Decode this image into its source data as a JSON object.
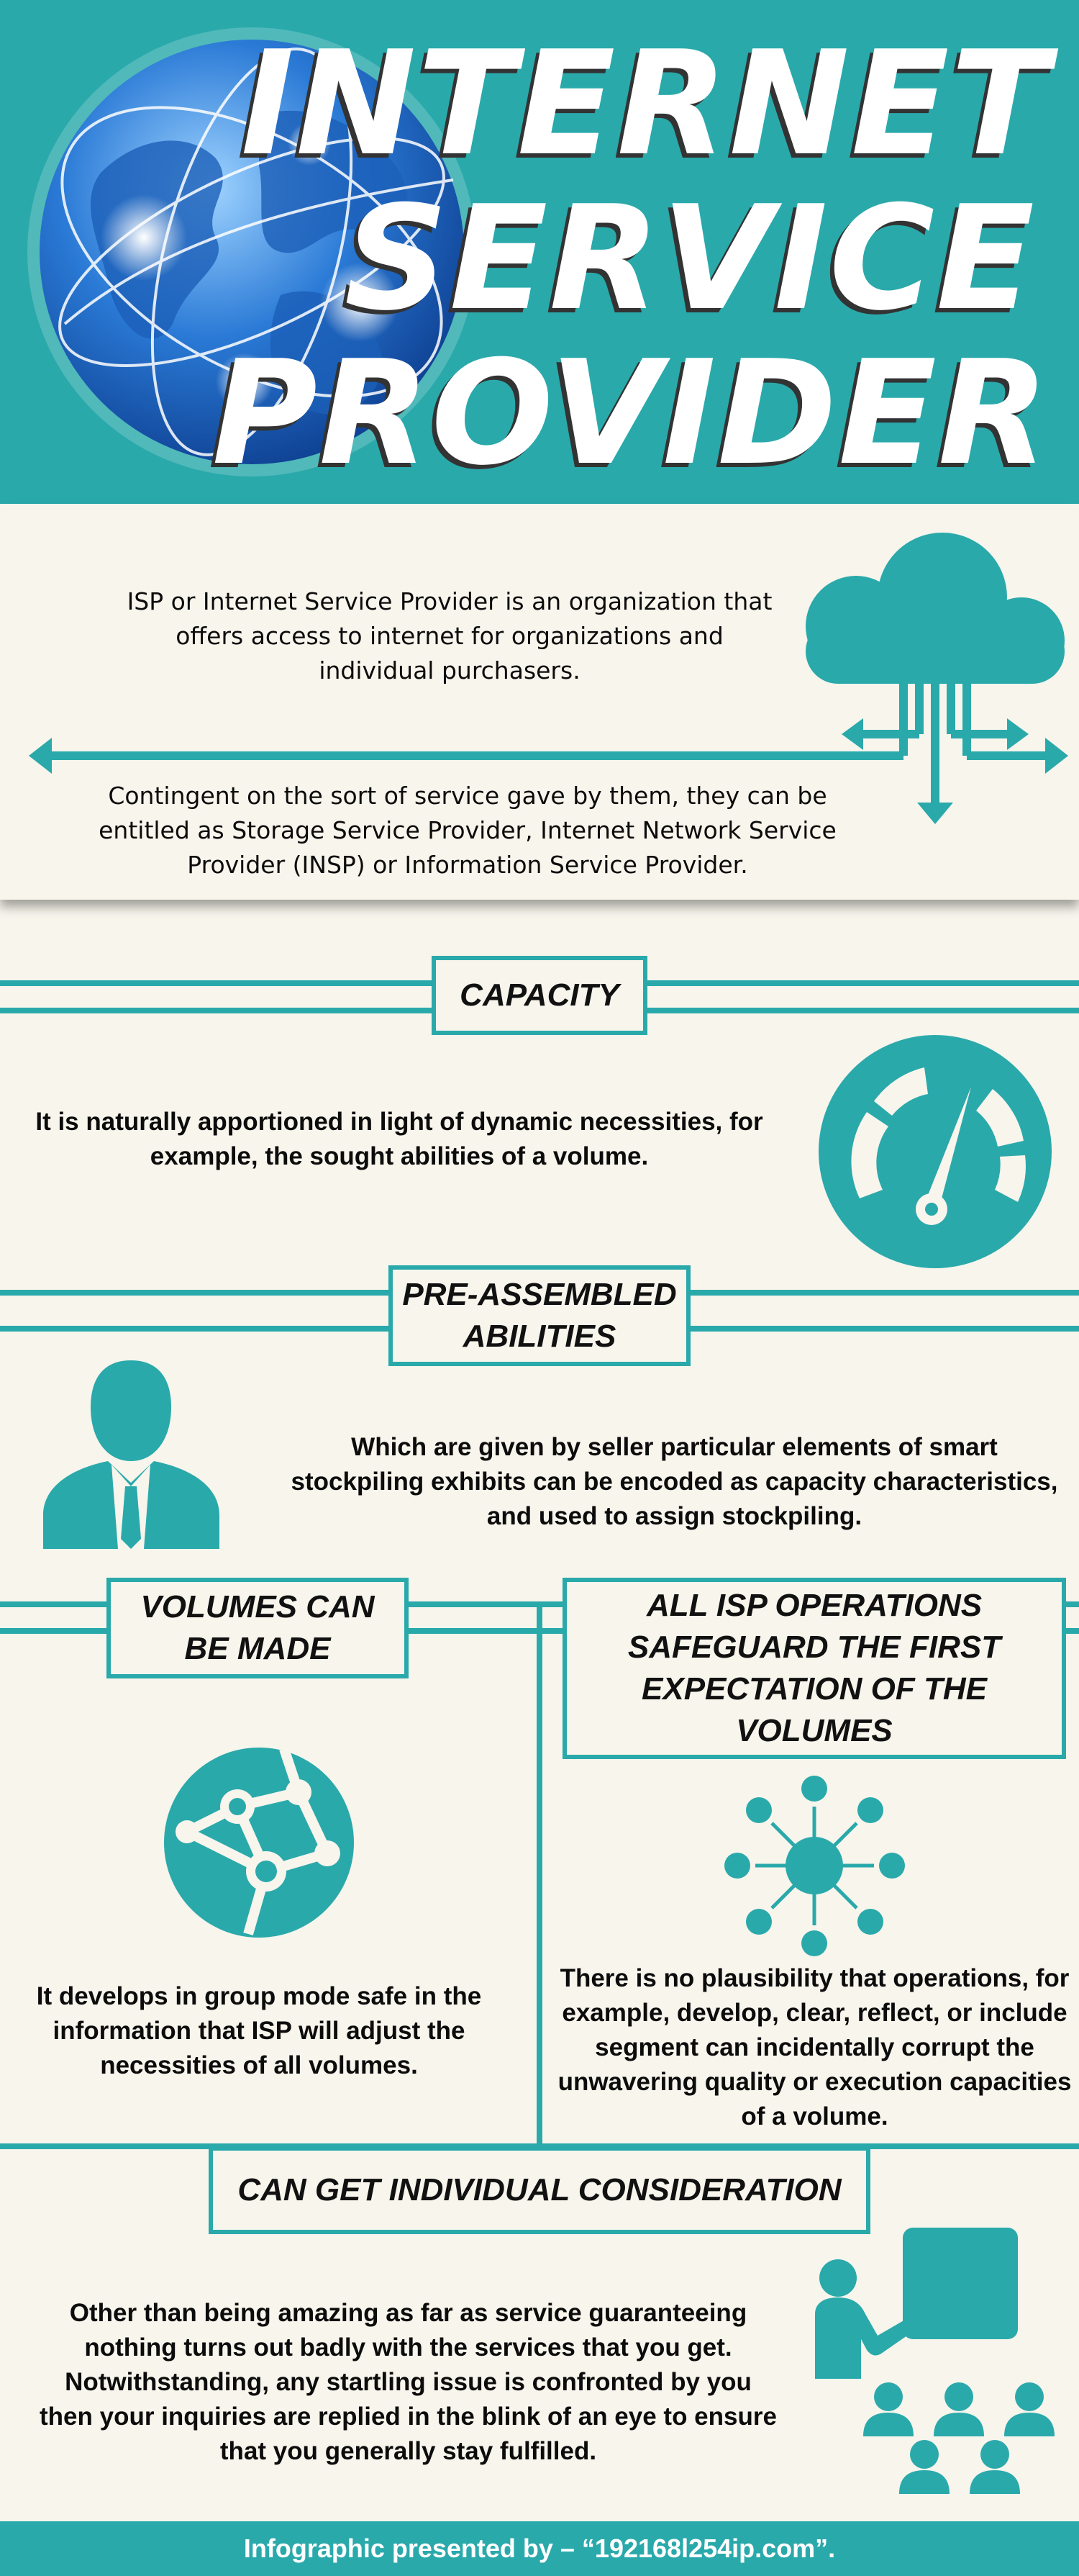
{
  "header": {
    "title_lines": [
      "INTERNET",
      "SERVICE",
      "PROVIDER"
    ],
    "globe_icon": "globe-icon"
  },
  "intro": {
    "paragraph1": "ISP or Internet Service Provider is an organization that offers access to internet for organizations and individual purchasers.",
    "paragraph2": "Contingent on the sort of service gave by them, they can be entitled as Storage Service Provider, Internet Network Service Provider (INSP) or Information Service Provider.",
    "cloud_icon": "cloud-network-icon"
  },
  "sections": {
    "capacity": {
      "heading": "CAPACITY",
      "text": "It is naturally apportioned in light of dynamic necessities, for example, the sought abilities of a volume.",
      "icon": "speedometer-icon"
    },
    "preassembled": {
      "heading_line1": "PRE-ASSEMBLED",
      "heading_line2": "ABILITIES",
      "text": "Which are given by seller particular elements of smart stockpiling exhibits can be encoded as capacity characteristics, and used to assign stockpiling.",
      "icon": "businessman-icon"
    },
    "volumes": {
      "heading_line1": "VOLUMES CAN",
      "heading_line2": "BE MADE",
      "text": "It develops in group mode safe in the information that ISP will adjust the necessities of all volumes.",
      "icon": "network-globe-icon"
    },
    "operations": {
      "heading_line1": "ALL ISP OPERATIONS",
      "heading_line2": "SAFEGUARD THE FIRST",
      "heading_line3": "EXPECTATION OF THE VOLUMES",
      "text": "There is no plausibility that operations, for example, develop, clear, reflect, or include segment can incidentally corrupt the unwavering quality or execution capacities of a volume.",
      "icon": "hub-spokes-icon"
    },
    "consideration": {
      "heading": "CAN GET INDIVIDUAL CONSIDERATION",
      "text": "Other than being amazing as far as service guaranteeing nothing turns out badly with the services that you get. Notwithstanding, any startling issue is confronted by you then your inquiries are replied in the blink of an eye to ensure that you generally stay fulfilled.",
      "icon": "presentation-audience-icon"
    }
  },
  "footer": {
    "text": "Infographic presented by – “192168l254ip.com”."
  },
  "colors": {
    "teal": "#2aa9ab",
    "cream": "#f7f5ec",
    "text": "#0c0c0c"
  }
}
